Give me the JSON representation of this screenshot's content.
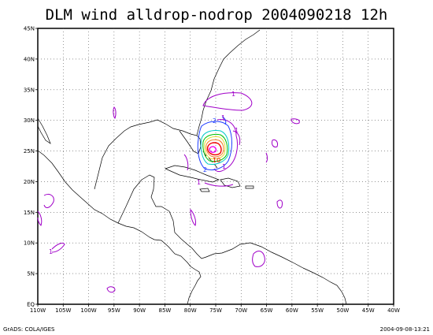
{
  "title": "DLM wind alldrop-nodrop 2004090218 12h",
  "map": {
    "lon_range": [
      -110,
      -40
    ],
    "lat_range": [
      0,
      45
    ],
    "lon_ticks": [
      "110W",
      "105W",
      "100W",
      "95W",
      "90W",
      "85W",
      "80W",
      "75W",
      "70W",
      "65W",
      "60W",
      "55W",
      "50W",
      "45W",
      "40W"
    ],
    "lat_ticks": [
      "EQ",
      "5N",
      "10N",
      "15N",
      "20N",
      "25N",
      "30N",
      "35N",
      "40N",
      "45N"
    ],
    "grid": true,
    "contour_colors": {
      "purple": "#a000c8",
      "blue": "#1e3cff",
      "cyan": "#00c8c8",
      "green": "#00c000",
      "yellow": "#e6dc32",
      "orange": "#f08228",
      "red": "#f00000",
      "magenta": "#f000f0"
    },
    "contour_labels": [
      "1",
      "1",
      "2",
      "1",
      "2",
      "1",
      "10",
      "1",
      "1"
    ]
  },
  "footer": {
    "left": "GrADS: COLA/IGES",
    "right": "2004-09-08-13:21"
  }
}
